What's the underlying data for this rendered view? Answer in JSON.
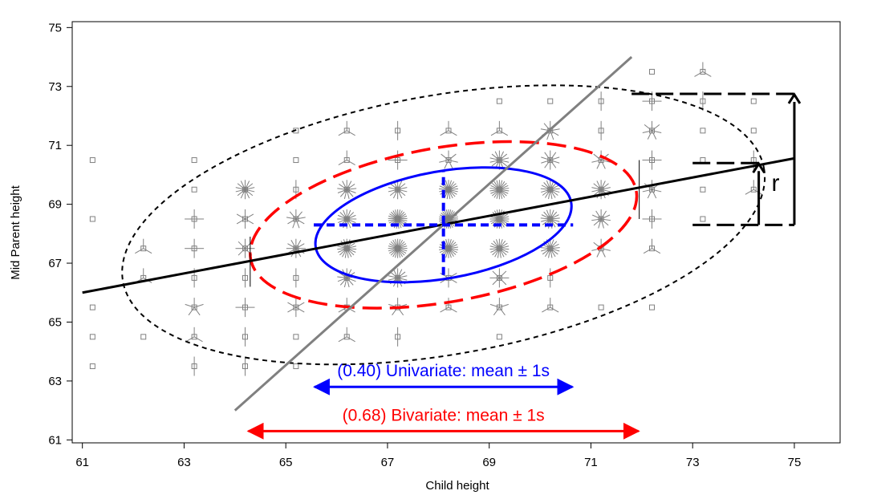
{
  "chart_data": {
    "type": "scatter",
    "xlabel": "Child height",
    "ylabel": "Mid Parent height",
    "xlim": [
      60.8,
      75.9
    ],
    "ylim": [
      60.9,
      75.2
    ],
    "xticks": [
      61,
      63,
      65,
      67,
      69,
      71,
      73,
      75
    ],
    "yticks": [
      61,
      63,
      65,
      67,
      69,
      71,
      73,
      75
    ],
    "grid": false,
    "legend": "none",
    "point_style": "sunflower",
    "points": [
      {
        "x": 61.2,
        "y": 70.5,
        "n": 1
      },
      {
        "x": 61.2,
        "y": 68.5,
        "n": 1
      },
      {
        "x": 61.2,
        "y": 65.5,
        "n": 1
      },
      {
        "x": 61.2,
        "y": 64.5,
        "n": 1
      },
      {
        "x": 61.2,
        "y": 63.5,
        "n": 1
      },
      {
        "x": 62.2,
        "y": 67.5,
        "n": 3
      },
      {
        "x": 62.2,
        "y": 66.5,
        "n": 3
      },
      {
        "x": 62.2,
        "y": 64.5,
        "n": 1
      },
      {
        "x": 63.2,
        "y": 70.5,
        "n": 1
      },
      {
        "x": 63.2,
        "y": 69.5,
        "n": 1
      },
      {
        "x": 63.2,
        "y": 68.5,
        "n": 4
      },
      {
        "x": 63.2,
        "y": 67.5,
        "n": 4
      },
      {
        "x": 63.2,
        "y": 66.5,
        "n": 2
      },
      {
        "x": 63.2,
        "y": 65.5,
        "n": 5
      },
      {
        "x": 63.2,
        "y": 64.5,
        "n": 3
      },
      {
        "x": 63.2,
        "y": 63.5,
        "n": 2
      },
      {
        "x": 64.2,
        "y": 69.5,
        "n": 14
      },
      {
        "x": 64.2,
        "y": 68.5,
        "n": 6
      },
      {
        "x": 64.2,
        "y": 67.5,
        "n": 8
      },
      {
        "x": 64.2,
        "y": 66.5,
        "n": 2
      },
      {
        "x": 64.2,
        "y": 65.5,
        "n": 4
      },
      {
        "x": 64.2,
        "y": 64.5,
        "n": 2
      },
      {
        "x": 64.2,
        "y": 63.5,
        "n": 2
      },
      {
        "x": 65.2,
        "y": 71.5,
        "n": 1
      },
      {
        "x": 65.2,
        "y": 70.5,
        "n": 1
      },
      {
        "x": 65.2,
        "y": 69.5,
        "n": 2
      },
      {
        "x": 65.2,
        "y": 68.5,
        "n": 9
      },
      {
        "x": 65.2,
        "y": 67.5,
        "n": 12
      },
      {
        "x": 65.2,
        "y": 66.5,
        "n": 2
      },
      {
        "x": 65.2,
        "y": 65.5,
        "n": 6
      },
      {
        "x": 65.2,
        "y": 64.5,
        "n": 1
      },
      {
        "x": 65.2,
        "y": 63.5,
        "n": 1
      },
      {
        "x": 66.2,
        "y": 71.5,
        "n": 3
      },
      {
        "x": 66.2,
        "y": 70.5,
        "n": 3
      },
      {
        "x": 66.2,
        "y": 69.5,
        "n": 13
      },
      {
        "x": 66.2,
        "y": 68.5,
        "n": 16
      },
      {
        "x": 66.2,
        "y": 67.5,
        "n": 19
      },
      {
        "x": 66.2,
        "y": 66.5,
        "n": 13
      },
      {
        "x": 66.2,
        "y": 65.5,
        "n": 3
      },
      {
        "x": 66.2,
        "y": 64.5,
        "n": 3
      },
      {
        "x": 67.2,
        "y": 71.5,
        "n": 2
      },
      {
        "x": 67.2,
        "y": 70.5,
        "n": 4
      },
      {
        "x": 67.2,
        "y": 69.5,
        "n": 14
      },
      {
        "x": 67.2,
        "y": 68.5,
        "n": 25
      },
      {
        "x": 67.2,
        "y": 67.5,
        "n": 24
      },
      {
        "x": 67.2,
        "y": 66.5,
        "n": 14
      },
      {
        "x": 67.2,
        "y": 65.5,
        "n": 5
      },
      {
        "x": 67.2,
        "y": 64.5,
        "n": 2
      },
      {
        "x": 68.2,
        "y": 71.5,
        "n": 3
      },
      {
        "x": 68.2,
        "y": 70.5,
        "n": 7
      },
      {
        "x": 68.2,
        "y": 69.5,
        "n": 21
      },
      {
        "x": 68.2,
        "y": 68.5,
        "n": 28
      },
      {
        "x": 68.2,
        "y": 67.5,
        "n": 22
      },
      {
        "x": 68.2,
        "y": 66.5,
        "n": 6
      },
      {
        "x": 68.2,
        "y": 65.5,
        "n": 3
      },
      {
        "x": 69.2,
        "y": 72.5,
        "n": 1
      },
      {
        "x": 69.2,
        "y": 71.5,
        "n": 3
      },
      {
        "x": 69.2,
        "y": 70.5,
        "n": 14
      },
      {
        "x": 69.2,
        "y": 69.5,
        "n": 22
      },
      {
        "x": 69.2,
        "y": 68.5,
        "n": 24
      },
      {
        "x": 69.2,
        "y": 67.5,
        "n": 19
      },
      {
        "x": 69.2,
        "y": 66.5,
        "n": 8
      },
      {
        "x": 69.2,
        "y": 65.5,
        "n": 5
      },
      {
        "x": 69.2,
        "y": 64.5,
        "n": 1
      },
      {
        "x": 70.2,
        "y": 72.5,
        "n": 1
      },
      {
        "x": 70.2,
        "y": 71.5,
        "n": 9
      },
      {
        "x": 70.2,
        "y": 70.5,
        "n": 10
      },
      {
        "x": 70.2,
        "y": 69.5,
        "n": 17
      },
      {
        "x": 70.2,
        "y": 68.5,
        "n": 17
      },
      {
        "x": 70.2,
        "y": 67.5,
        "n": 17
      },
      {
        "x": 70.2,
        "y": 66.5,
        "n": 2
      },
      {
        "x": 70.2,
        "y": 65.5,
        "n": 3
      },
      {
        "x": 71.2,
        "y": 72.5,
        "n": 2
      },
      {
        "x": 71.2,
        "y": 71.5,
        "n": 2
      },
      {
        "x": 71.2,
        "y": 70.5,
        "n": 7
      },
      {
        "x": 71.2,
        "y": 69.5,
        "n": 14
      },
      {
        "x": 71.2,
        "y": 68.5,
        "n": 11
      },
      {
        "x": 71.2,
        "y": 67.5,
        "n": 7
      },
      {
        "x": 71.2,
        "y": 65.5,
        "n": 1
      },
      {
        "x": 72.2,
        "y": 73.5,
        "n": 1
      },
      {
        "x": 72.2,
        "y": 72.5,
        "n": 4
      },
      {
        "x": 72.2,
        "y": 71.5,
        "n": 7
      },
      {
        "x": 72.2,
        "y": 70.5,
        "n": 4
      },
      {
        "x": 72.2,
        "y": 69.5,
        "n": 7
      },
      {
        "x": 72.2,
        "y": 68.5,
        "n": 4
      },
      {
        "x": 72.2,
        "y": 67.5,
        "n": 3
      },
      {
        "x": 72.2,
        "y": 65.5,
        "n": 1
      },
      {
        "x": 73.2,
        "y": 73.5,
        "n": 3
      },
      {
        "x": 73.2,
        "y": 72.5,
        "n": 2
      },
      {
        "x": 73.2,
        "y": 71.5,
        "n": 1
      },
      {
        "x": 73.2,
        "y": 70.5,
        "n": 1
      },
      {
        "x": 73.2,
        "y": 69.5,
        "n": 1
      },
      {
        "x": 73.2,
        "y": 68.5,
        "n": 1
      },
      {
        "x": 74.2,
        "y": 72.5,
        "n": 1
      },
      {
        "x": 74.2,
        "y": 71.5,
        "n": 1
      },
      {
        "x": 74.2,
        "y": 70.5,
        "n": 2
      },
      {
        "x": 74.2,
        "y": 69.5,
        "n": 3
      }
    ],
    "lines": [
      {
        "id": "regression-line",
        "x": [
          61,
          75
        ],
        "y": [
          66.0,
          70.56
        ],
        "color": "#000000",
        "style": "solid"
      },
      {
        "id": "major-axis-line",
        "x": [
          64.0,
          71.8
        ],
        "y": [
          62.0,
          74.0
        ],
        "color": "#808080",
        "style": "solid"
      },
      {
        "id": "univariate-mean-x",
        "x": [
          68.1,
          68.1
        ],
        "y": [
          66.6,
          70.1
        ],
        "color": "#0000ff",
        "style": "dashed"
      },
      {
        "id": "univariate-mean-y",
        "x": [
          65.55,
          70.65
        ],
        "y": [
          68.3,
          68.3
        ],
        "color": "#0000ff",
        "style": "dashed"
      }
    ],
    "ellipses": [
      {
        "id": "ellipse-0.40",
        "cx": 68.1,
        "cy": 68.3,
        "rx": 2.55,
        "ry": 1.82,
        "rotation_deg": -10,
        "color": "#0000ff",
        "style": "solid"
      },
      {
        "id": "ellipse-0.68",
        "cx": 68.1,
        "cy": 68.3,
        "rx": 3.85,
        "ry": 2.62,
        "rotation_deg": -10,
        "color": "#ff0000",
        "style": "dashed"
      },
      {
        "id": "ellipse-outer",
        "cx": 68.1,
        "cy": 68.3,
        "rx": 6.4,
        "ry": 4.4,
        "rotation_deg": -10,
        "color": "#000000",
        "style": "dotted"
      }
    ],
    "annotations": [
      {
        "id": "univariate",
        "text": "(0.40) Univariate: mean ± 1s",
        "x_range": [
          65.55,
          70.65
        ],
        "y": 62.8,
        "color": "#0000ff"
      },
      {
        "id": "bivariate",
        "text": "(0.68) Bivariate: mean ± 1s",
        "x_range": [
          64.25,
          71.95
        ],
        "y": 61.3,
        "color": "#ff0000"
      },
      {
        "id": "r",
        "text": "r",
        "color": "#000000"
      }
    ],
    "colors": {
      "points": "#808080",
      "regression": "#000000",
      "univariate": "#0000ff",
      "bivariate": "#ff0000"
    }
  }
}
